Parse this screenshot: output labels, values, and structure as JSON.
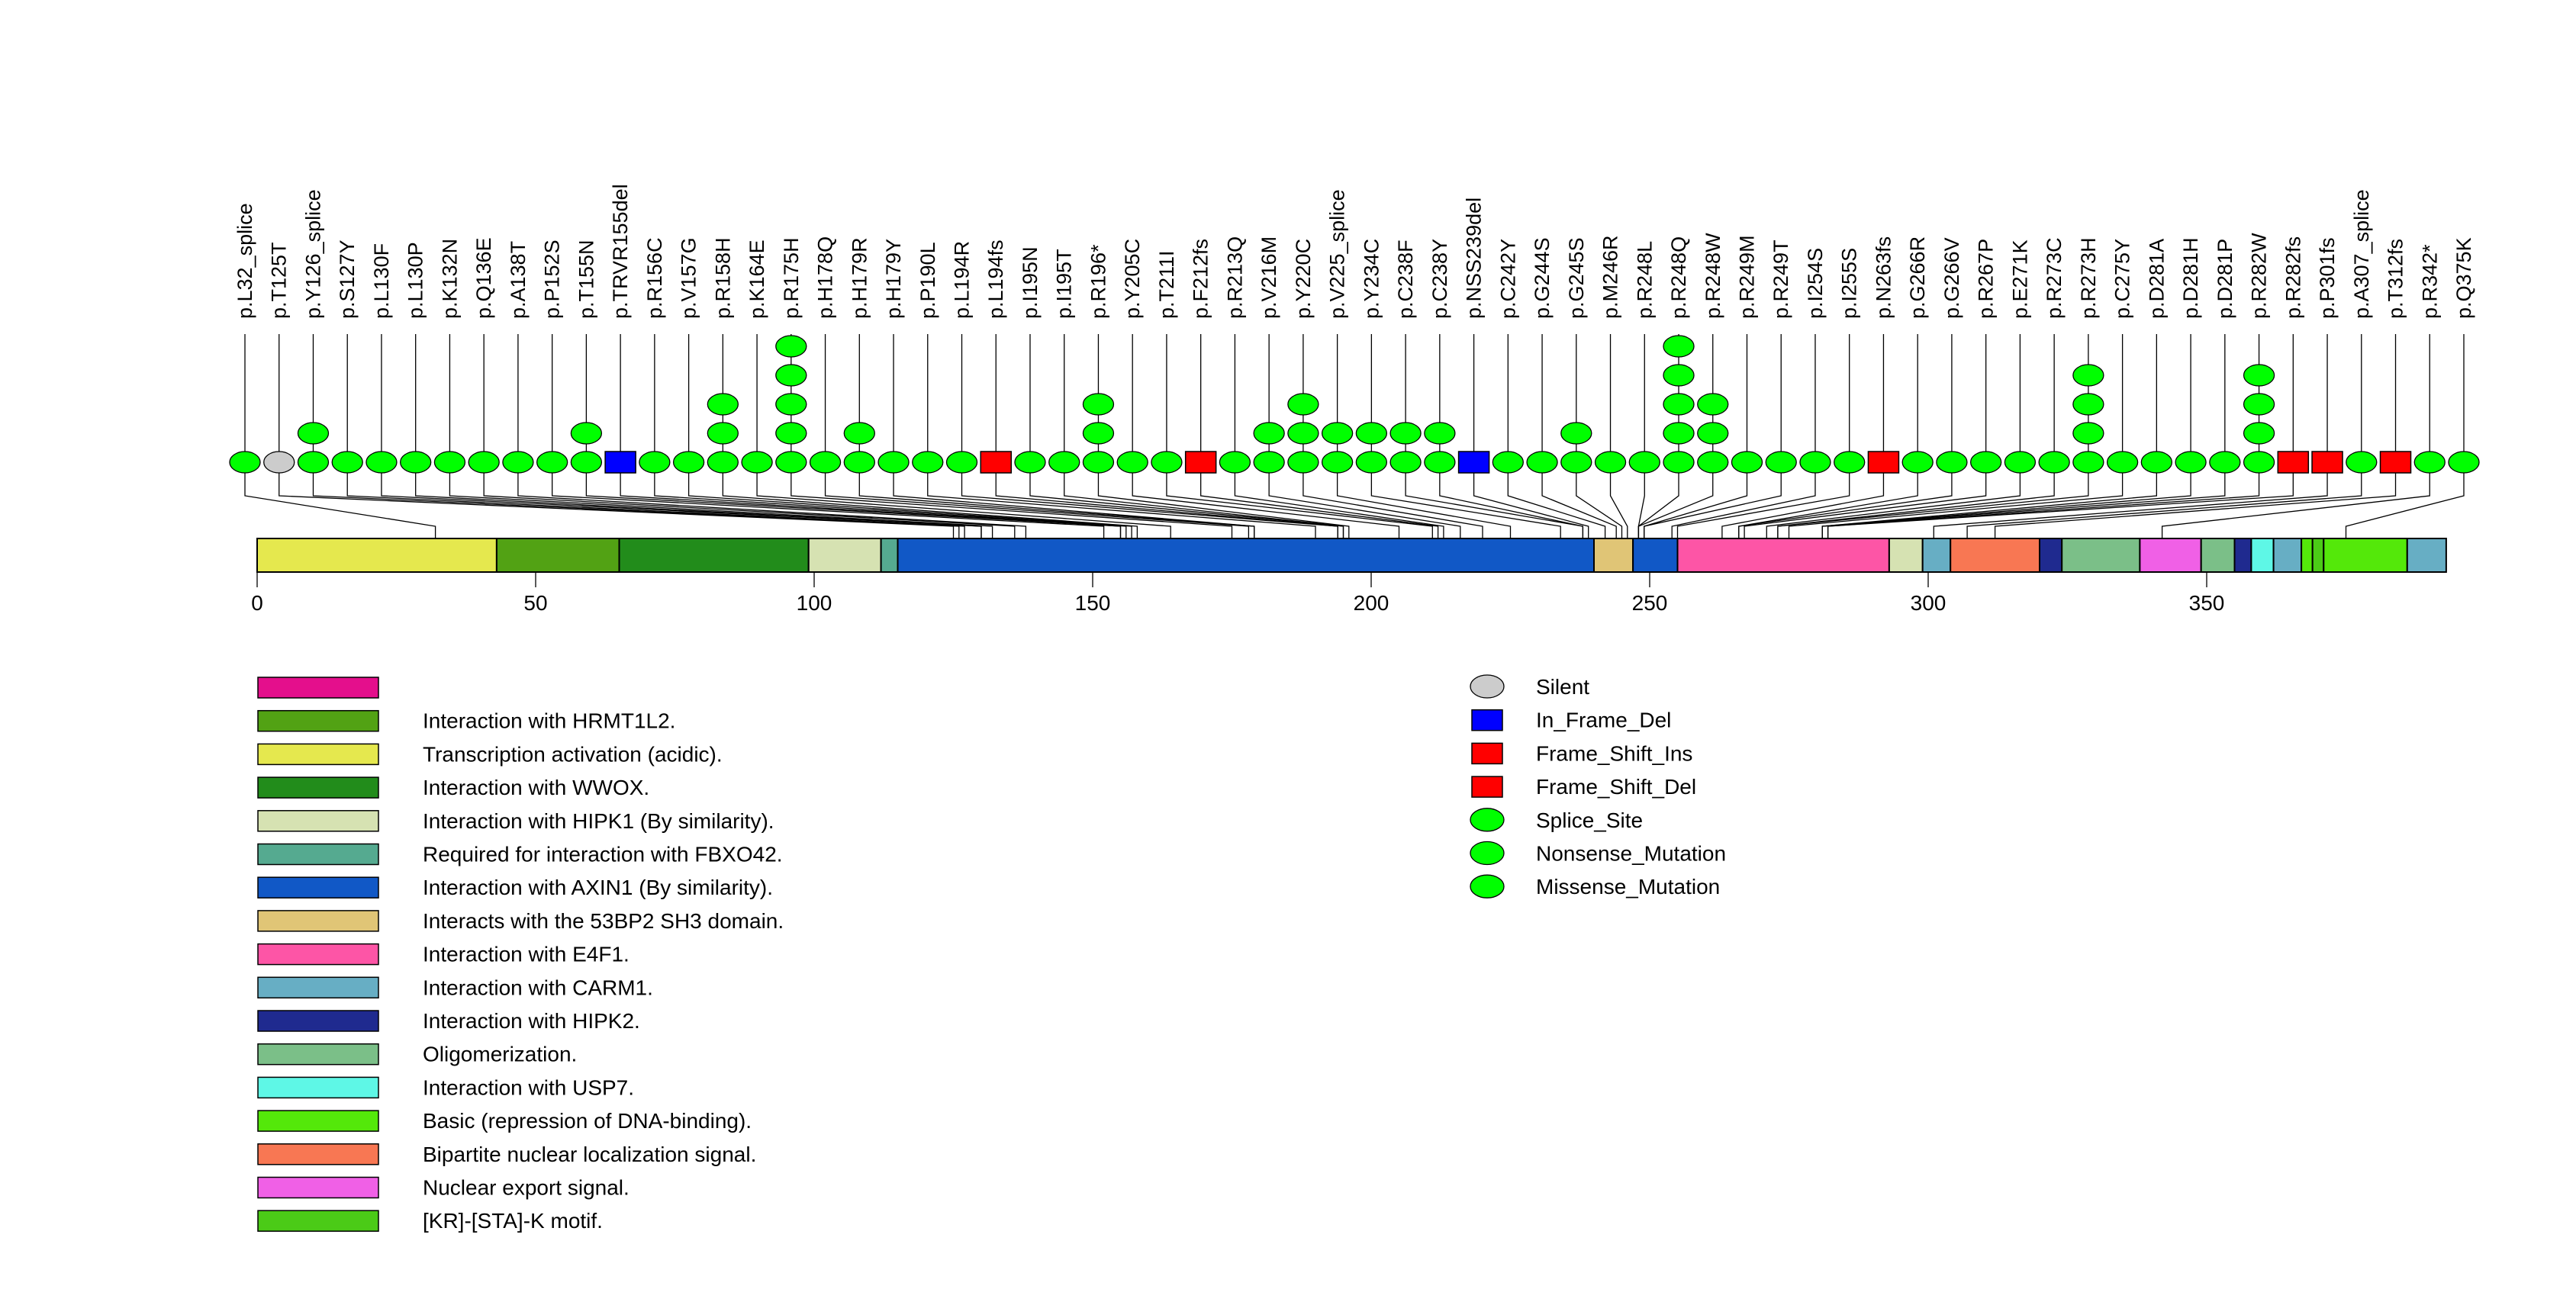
{
  "chart_data": {
    "type": "lollipop",
    "title": "",
    "xlabel": "",
    "ylabel": "",
    "protein_length": 393,
    "xlim": [
      0,
      393
    ],
    "x_ticks": [
      0,
      50,
      100,
      150,
      200,
      250,
      300,
      350
    ],
    "grid": false,
    "mutation_type_colors": {
      "Silent": "#cccccc",
      "In_Frame_Del": "#0000ff",
      "Frame_Shift_Ins": "#ff0000",
      "Frame_Shift_Del": "#ff0000",
      "Splice_Site": "#00ff00",
      "Nonsense_Mutation": "#00ff00",
      "Missense_Mutation": "#00ff00"
    },
    "mutations": [
      {
        "label": "p.L32_splice",
        "position": 32,
        "type": "Splice_Site",
        "count": 1
      },
      {
        "label": "p.T125T",
        "position": 125,
        "type": "Silent",
        "count": 1
      },
      {
        "label": "p.Y126_splice",
        "position": 126,
        "type": "Splice_Site",
        "count": 2
      },
      {
        "label": "p.S127Y",
        "position": 127,
        "type": "Missense_Mutation",
        "count": 1
      },
      {
        "label": "p.L130F",
        "position": 130,
        "type": "Missense_Mutation",
        "count": 1
      },
      {
        "label": "p.L130P",
        "position": 130,
        "type": "Missense_Mutation",
        "count": 1
      },
      {
        "label": "p.K132N",
        "position": 132,
        "type": "Missense_Mutation",
        "count": 1
      },
      {
        "label": "p.Q136E",
        "position": 136,
        "type": "Missense_Mutation",
        "count": 1
      },
      {
        "label": "p.A138T",
        "position": 138,
        "type": "Missense_Mutation",
        "count": 1
      },
      {
        "label": "p.P152S",
        "position": 152,
        "type": "Missense_Mutation",
        "count": 1
      },
      {
        "label": "p.T155N",
        "position": 155,
        "type": "Missense_Mutation",
        "count": 2
      },
      {
        "label": "p.TRVR155del",
        "position": 155,
        "type": "In_Frame_Del",
        "count": 1
      },
      {
        "label": "p.R156C",
        "position": 156,
        "type": "Missense_Mutation",
        "count": 1
      },
      {
        "label": "p.V157G",
        "position": 157,
        "type": "Missense_Mutation",
        "count": 1
      },
      {
        "label": "p.R158H",
        "position": 158,
        "type": "Missense_Mutation",
        "count": 3
      },
      {
        "label": "p.K164E",
        "position": 164,
        "type": "Missense_Mutation",
        "count": 1
      },
      {
        "label": "p.R175H",
        "position": 175,
        "type": "Missense_Mutation",
        "count": 5
      },
      {
        "label": "p.H178Q",
        "position": 178,
        "type": "Missense_Mutation",
        "count": 1
      },
      {
        "label": "p.H179R",
        "position": 179,
        "type": "Missense_Mutation",
        "count": 2
      },
      {
        "label": "p.H179Y",
        "position": 179,
        "type": "Missense_Mutation",
        "count": 1
      },
      {
        "label": "p.P190L",
        "position": 190,
        "type": "Missense_Mutation",
        "count": 1
      },
      {
        "label": "p.L194R",
        "position": 194,
        "type": "Missense_Mutation",
        "count": 1
      },
      {
        "label": "p.L194fs",
        "position": 194,
        "type": "Frame_Shift_Del",
        "count": 1
      },
      {
        "label": "p.I195N",
        "position": 195,
        "type": "Missense_Mutation",
        "count": 1
      },
      {
        "label": "p.I195T",
        "position": 195,
        "type": "Missense_Mutation",
        "count": 1
      },
      {
        "label": "p.R196*",
        "position": 196,
        "type": "Nonsense_Mutation",
        "count": 3
      },
      {
        "label": "p.Y205C",
        "position": 205,
        "type": "Missense_Mutation",
        "count": 1
      },
      {
        "label": "p.T211I",
        "position": 211,
        "type": "Missense_Mutation",
        "count": 1
      },
      {
        "label": "p.F212fs",
        "position": 212,
        "type": "Frame_Shift_Ins",
        "count": 1
      },
      {
        "label": "p.R213Q",
        "position": 213,
        "type": "Missense_Mutation",
        "count": 1
      },
      {
        "label": "p.V216M",
        "position": 216,
        "type": "Missense_Mutation",
        "count": 2
      },
      {
        "label": "p.Y220C",
        "position": 220,
        "type": "Missense_Mutation",
        "count": 3
      },
      {
        "label": "p.V225_splice",
        "position": 225,
        "type": "Splice_Site",
        "count": 2
      },
      {
        "label": "p.Y234C",
        "position": 234,
        "type": "Missense_Mutation",
        "count": 2
      },
      {
        "label": "p.C238F",
        "position": 238,
        "type": "Missense_Mutation",
        "count": 2
      },
      {
        "label": "p.C238Y",
        "position": 238,
        "type": "Missense_Mutation",
        "count": 2
      },
      {
        "label": "p.NSS239del",
        "position": 239,
        "type": "In_Frame_Del",
        "count": 1
      },
      {
        "label": "p.C242Y",
        "position": 242,
        "type": "Missense_Mutation",
        "count": 1
      },
      {
        "label": "p.G244S",
        "position": 244,
        "type": "Missense_Mutation",
        "count": 1
      },
      {
        "label": "p.G245S",
        "position": 245,
        "type": "Missense_Mutation",
        "count": 2
      },
      {
        "label": "p.M246R",
        "position": 246,
        "type": "Missense_Mutation",
        "count": 1
      },
      {
        "label": "p.R248L",
        "position": 248,
        "type": "Missense_Mutation",
        "count": 1
      },
      {
        "label": "p.R248Q",
        "position": 248,
        "type": "Missense_Mutation",
        "count": 5
      },
      {
        "label": "p.R248W",
        "position": 248,
        "type": "Missense_Mutation",
        "count": 3
      },
      {
        "label": "p.R249M",
        "position": 249,
        "type": "Missense_Mutation",
        "count": 1
      },
      {
        "label": "p.R249T",
        "position": 249,
        "type": "Missense_Mutation",
        "count": 1
      },
      {
        "label": "p.I254S",
        "position": 254,
        "type": "Missense_Mutation",
        "count": 1
      },
      {
        "label": "p.I255S",
        "position": 255,
        "type": "Missense_Mutation",
        "count": 1
      },
      {
        "label": "p.N263fs",
        "position": 263,
        "type": "Frame_Shift_Del",
        "count": 1
      },
      {
        "label": "p.G266R",
        "position": 266,
        "type": "Missense_Mutation",
        "count": 1
      },
      {
        "label": "p.G266V",
        "position": 266,
        "type": "Missense_Mutation",
        "count": 1
      },
      {
        "label": "p.R267P",
        "position": 267,
        "type": "Missense_Mutation",
        "count": 1
      },
      {
        "label": "p.E271K",
        "position": 271,
        "type": "Missense_Mutation",
        "count": 1
      },
      {
        "label": "p.R273C",
        "position": 273,
        "type": "Missense_Mutation",
        "count": 1
      },
      {
        "label": "p.R273H",
        "position": 273,
        "type": "Missense_Mutation",
        "count": 4
      },
      {
        "label": "p.C275Y",
        "position": 275,
        "type": "Missense_Mutation",
        "count": 1
      },
      {
        "label": "p.D281A",
        "position": 281,
        "type": "Missense_Mutation",
        "count": 1
      },
      {
        "label": "p.D281H",
        "position": 281,
        "type": "Missense_Mutation",
        "count": 1
      },
      {
        "label": "p.D281P",
        "position": 281,
        "type": "Missense_Mutation",
        "count": 1
      },
      {
        "label": "p.R282W",
        "position": 282,
        "type": "Missense_Mutation",
        "count": 4
      },
      {
        "label": "p.R282fs",
        "position": 282,
        "type": "Frame_Shift_Del",
        "count": 1
      },
      {
        "label": "p.P301fs",
        "position": 301,
        "type": "Frame_Shift_Del",
        "count": 1
      },
      {
        "label": "p.A307_splice",
        "position": 307,
        "type": "Splice_Site",
        "count": 1
      },
      {
        "label": "p.T312fs",
        "position": 312,
        "type": "Frame_Shift_Del",
        "count": 1
      },
      {
        "label": "p.R342*",
        "position": 342,
        "type": "Nonsense_Mutation",
        "count": 1
      },
      {
        "label": "p.Q375K",
        "position": 375,
        "type": "Missense_Mutation",
        "count": 1
      }
    ],
    "domains": [
      {
        "start": 0,
        "end": 43,
        "name": "Transcription activation (acidic).",
        "color": "#e5e84e"
      },
      {
        "start": 43,
        "end": 65,
        "name": "Interaction with HRMT1L2.",
        "color": "#52a214"
      },
      {
        "start": 65,
        "end": 99,
        "name": "Interaction with WWOX.",
        "color": "#228c1b"
      },
      {
        "start": 99,
        "end": 112,
        "name": "Interaction with HIPK1 (By similarity).",
        "color": "#d6e2b2"
      },
      {
        "start": 112,
        "end": 115,
        "name": "Required for interaction with FBXO42.",
        "color": "#55aa90"
      },
      {
        "start": 115,
        "end": 240,
        "name": "Interaction with AXIN1 (By similarity).",
        "color": "#1158c6"
      },
      {
        "start": 240,
        "end": 247,
        "name": "Interacts with the 53BP2 SH3 domain.",
        "color": "#e0c576"
      },
      {
        "start": 247,
        "end": 255,
        "name": "Interaction with AXIN1 (By similarity).",
        "color": "#1158c6"
      },
      {
        "start": 255,
        "end": 293,
        "name": "Interaction with E4F1.",
        "color": "#fd55a6"
      },
      {
        "start": 293,
        "end": 299,
        "name": "Interaction with HIPK1 (By similarity).",
        "color": "#d6e2b2"
      },
      {
        "start": 299,
        "end": 304,
        "name": "Interaction with CARM1.",
        "color": "#67aec4"
      },
      {
        "start": 304,
        "end": 320,
        "name": "Bipartite nuclear localization signal.",
        "color": "#f87753"
      },
      {
        "start": 320,
        "end": 324,
        "name": "Interaction with HIPK2.",
        "color": "#1f2a8f"
      },
      {
        "start": 324,
        "end": 338,
        "name": "Oligomerization.",
        "color": "#7bbf88"
      },
      {
        "start": 338,
        "end": 349,
        "name": "Nuclear export signal.",
        "color": "#f060e6"
      },
      {
        "start": 349,
        "end": 355,
        "name": "Oligomerization.",
        "color": "#7bbf88"
      },
      {
        "start": 355,
        "end": 358,
        "name": "Interaction with HIPK2.",
        "color": "#1f2a8f"
      },
      {
        "start": 358,
        "end": 362,
        "name": "Interaction with USP7.",
        "color": "#5ef7e6"
      },
      {
        "start": 362,
        "end": 367,
        "name": "Interaction with CARM1.",
        "color": "#67aec4"
      },
      {
        "start": 367,
        "end": 369,
        "name": "Basic (repression of DNA-binding).",
        "color": "#54e80a"
      },
      {
        "start": 369,
        "end": 371,
        "name": "[KR]-[STA]-K motif.",
        "color": "#4bcb17"
      },
      {
        "start": 371,
        "end": 386,
        "name": "Basic (repression of DNA-binding).",
        "color": "#54e80a"
      },
      {
        "start": 386,
        "end": 393,
        "name": "Interaction with CARM1.",
        "color": "#67aec4"
      }
    ],
    "domain_legend": [
      {
        "label": "",
        "color": "#e40f8c"
      },
      {
        "label": "Interaction with HRMT1L2.",
        "color": "#52a214"
      },
      {
        "label": "Transcription activation (acidic).",
        "color": "#e5e84e"
      },
      {
        "label": "Interaction with WWOX.",
        "color": "#228c1b"
      },
      {
        "label": "Interaction with HIPK1 (By similarity).",
        "color": "#d6e2b2"
      },
      {
        "label": "Required for interaction with FBXO42.",
        "color": "#55aa90"
      },
      {
        "label": "Interaction with AXIN1 (By similarity).",
        "color": "#1158c6"
      },
      {
        "label": "Interacts with the 53BP2 SH3 domain.",
        "color": "#e0c576"
      },
      {
        "label": "Interaction with E4F1.",
        "color": "#fd55a6"
      },
      {
        "label": "Interaction with CARM1.",
        "color": "#67aec4"
      },
      {
        "label": "Interaction with HIPK2.",
        "color": "#1f2a8f"
      },
      {
        "label": "Oligomerization.",
        "color": "#7bbf88"
      },
      {
        "label": "Interaction with USP7.",
        "color": "#5ef7e6"
      },
      {
        "label": "Basic (repression of DNA-binding).",
        "color": "#54e80a"
      },
      {
        "label": "Bipartite nuclear localization signal.",
        "color": "#f87753"
      },
      {
        "label": "Nuclear export signal.",
        "color": "#f060e6"
      },
      {
        "label": "[KR]-[STA]-K motif.",
        "color": "#4bcb17"
      }
    ],
    "mutation_legend": [
      {
        "label": "Silent",
        "shape": "ellipse",
        "color": "#cccccc"
      },
      {
        "label": "In_Frame_Del",
        "shape": "square",
        "color": "#0000ff"
      },
      {
        "label": "Frame_Shift_Ins",
        "shape": "square",
        "color": "#ff0000"
      },
      {
        "label": "Frame_Shift_Del",
        "shape": "square",
        "color": "#ff0000"
      },
      {
        "label": "Splice_Site",
        "shape": "ellipse",
        "color": "#00ff00"
      },
      {
        "label": "Nonsense_Mutation",
        "shape": "ellipse",
        "color": "#00ff00"
      },
      {
        "label": "Missense_Mutation",
        "shape": "ellipse",
        "color": "#00ff00"
      }
    ]
  }
}
